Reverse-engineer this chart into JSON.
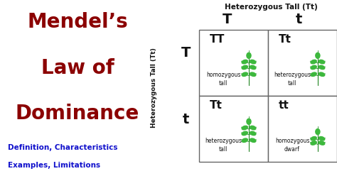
{
  "title_line1": "Mendel’s",
  "title_line2": "Law of",
  "title_line3": "Dominance",
  "subtitle_line1": "Definition, Characteristics",
  "subtitle_line2": "Examples, Limitations",
  "title_color": "#8B0000",
  "subtitle_color": "#1010CC",
  "top_label": "Heterozygous Tall (Tt)",
  "col_labels": [
    "T",
    "t"
  ],
  "row_labels": [
    "T",
    "t"
  ],
  "side_label": "Heterozygous Tall (Tt)",
  "cells": [
    {
      "genotype": "TT",
      "desc1": "homozygous",
      "desc2": "tall",
      "row": 0,
      "col": 0
    },
    {
      "genotype": "Tt",
      "desc1": "heterozygous",
      "desc2": "tall",
      "row": 0,
      "col": 1
    },
    {
      "genotype": "Tt",
      "desc1": "heterozygous",
      "desc2": "tall",
      "row": 1,
      "col": 0
    },
    {
      "genotype": "tt",
      "desc1": "homozygous",
      "desc2": "dwarf",
      "row": 1,
      "col": 1
    }
  ],
  "bg_color": "#FFFFFF",
  "grid_color": "#666666",
  "figsize": [
    4.74,
    2.48
  ],
  "dpi": 100
}
